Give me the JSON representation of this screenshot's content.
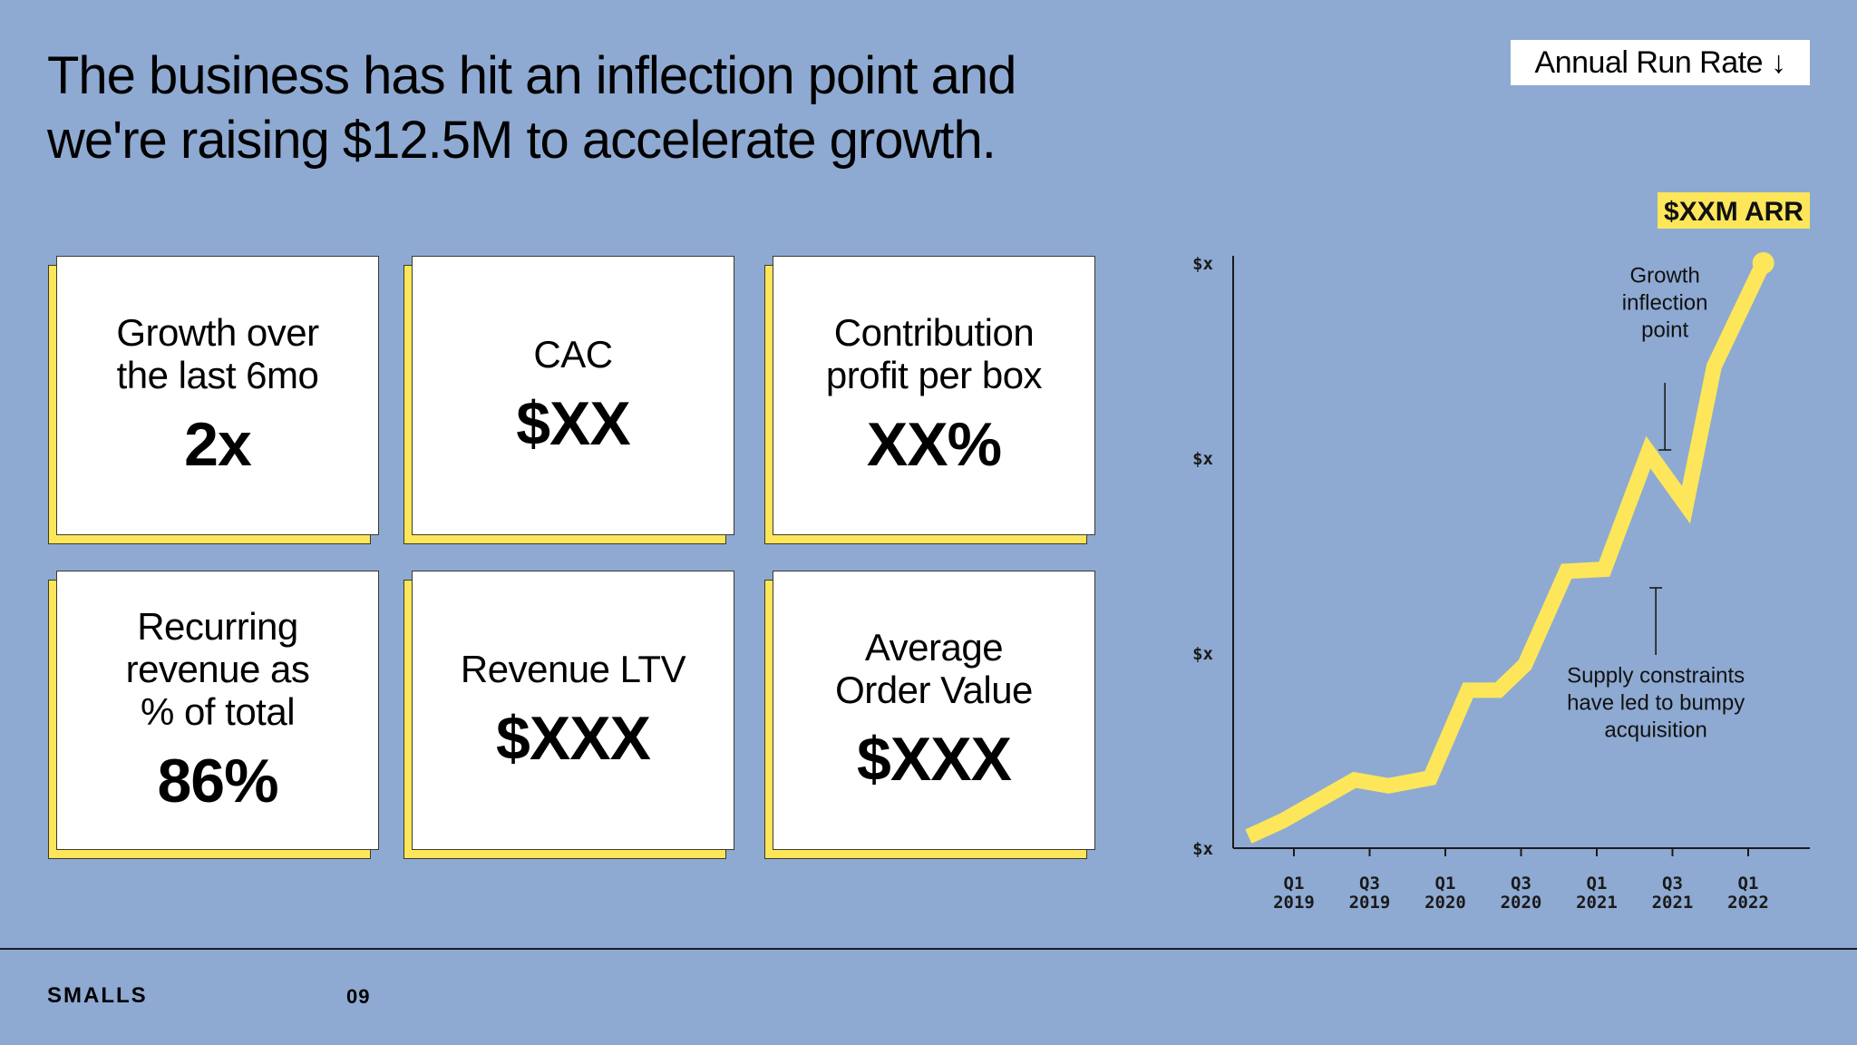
{
  "headline": {
    "line1": "The business has hit an inflection point and",
    "line2": "we're raising $12.5M to accelerate growth."
  },
  "arr_tag": "Annual Run Rate ↓",
  "metrics": [
    {
      "label_lines": [
        "Growth over",
        "the last 6mo"
      ],
      "value": "2x"
    },
    {
      "label_lines": [
        "CAC"
      ],
      "value": "$XX"
    },
    {
      "label_lines": [
        "Contribution",
        "profit per box"
      ],
      "value": "XX%"
    },
    {
      "label_lines": [
        "Recurring",
        "revenue as",
        "% of total"
      ],
      "value": "86%"
    },
    {
      "label_lines": [
        "Revenue LTV"
      ],
      "value": "$XXX"
    },
    {
      "label_lines": [
        "Average",
        "Order Value"
      ],
      "value": "$XXX"
    }
  ],
  "chart_data": {
    "type": "line",
    "title": "Annual Run Rate",
    "y_tick_labels": [
      "$x",
      "$x",
      "$x",
      "$x"
    ],
    "x_ticks": [
      {
        "q": "Q1",
        "year": "2019"
      },
      {
        "q": "Q3",
        "year": "2019"
      },
      {
        "q": "Q1",
        "year": "2020"
      },
      {
        "q": "Q3",
        "year": "2020"
      },
      {
        "q": "Q1",
        "year": "2021"
      },
      {
        "q": "Q3",
        "year": "2021"
      },
      {
        "q": "Q1",
        "year": "2022"
      }
    ],
    "x_range": [
      -0.6,
      6.7
    ],
    "y_range": [
      0,
      3
    ],
    "series": [
      {
        "name": "ARR",
        "color": "#fde65a",
        "points": [
          [
            -0.6,
            0.06
          ],
          [
            -0.15,
            0.14
          ],
          [
            0.8,
            0.35
          ],
          [
            1.25,
            0.32
          ],
          [
            1.8,
            0.36
          ],
          [
            2.3,
            0.81
          ],
          [
            2.7,
            0.81
          ],
          [
            3.05,
            0.94
          ],
          [
            3.6,
            1.42
          ],
          [
            4.1,
            1.43
          ],
          [
            4.68,
            2.03
          ],
          [
            5.18,
            1.76
          ],
          [
            5.55,
            2.47
          ],
          [
            6.2,
            3.0
          ]
        ]
      }
    ],
    "endpoint_label": "$XXM ARR",
    "annotations": [
      {
        "lines": [
          "Growth",
          "inflection",
          "point"
        ],
        "x": 4.9,
        "y": 2.9
      },
      {
        "lines": [
          "Supply constraints",
          "have led to bumpy",
          "acquisition"
        ],
        "x": 4.78,
        "y": 0.85
      }
    ],
    "accent_color": "#fde65a",
    "axis_color": "#1a1a1a"
  },
  "footer": {
    "brand": "SMALLS",
    "page": "09"
  }
}
